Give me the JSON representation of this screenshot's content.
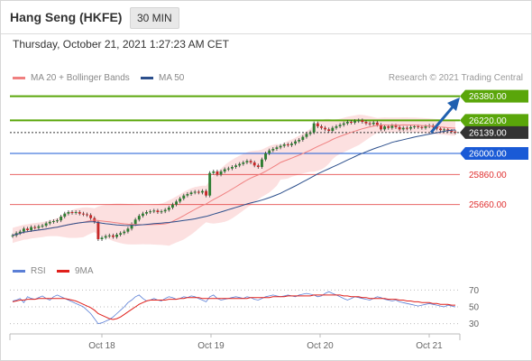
{
  "header": {
    "title": "Hang Seng (HKFE)",
    "timeframe": "30 MIN"
  },
  "timestamp": "Thursday, October 21, 2021 1:27:23 AM CET",
  "legend": {
    "items": [
      {
        "label": "MA 20 + Bollinger Bands",
        "color": "#f08080"
      },
      {
        "label": "MA 50",
        "color": "#2c4f8c"
      }
    ],
    "copyright": "Research © 2021 Trading Central"
  },
  "rsi_legend": {
    "items": [
      {
        "label": "RSI",
        "color": "#5b7fd6"
      },
      {
        "label": "9MA",
        "color": "#e0201b"
      }
    ]
  },
  "chart_data": {
    "type": "candlestick",
    "ylim": [
      25400,
      26420
    ],
    "x_ticks": [
      "Oct 18",
      "Oct 19",
      "Oct 20",
      "Oct 21"
    ],
    "levels": [
      {
        "value": 26380.0,
        "label": "26380.00",
        "kind": "resistance",
        "color": "#5aa60a"
      },
      {
        "value": 26220.0,
        "label": "26220.00",
        "kind": "resistance",
        "color": "#5aa60a"
      },
      {
        "value": 26139.0,
        "label": "26139.00",
        "kind": "last",
        "color": "#333333"
      },
      {
        "value": 26000.0,
        "label": "26000.00",
        "kind": "pivot",
        "color": "#1a5ad6"
      },
      {
        "value": 25860.0,
        "label": "25860.00",
        "kind": "support",
        "color": "#e03030"
      },
      {
        "value": 25660.0,
        "label": "25660.00",
        "kind": "support",
        "color": "#e03030"
      }
    ],
    "close": [
      25455,
      25470,
      25480,
      25500,
      25490,
      25510,
      25505,
      25515,
      25520,
      25535,
      25545,
      25550,
      25555,
      25580,
      25600,
      25610,
      25605,
      25610,
      25600,
      25595,
      25590,
      25570,
      25545,
      25430,
      25440,
      25450,
      25455,
      25445,
      25460,
      25470,
      25480,
      25500,
      25530,
      25560,
      25585,
      25600,
      25610,
      25615,
      25620,
      25610,
      25615,
      25625,
      25640,
      25660,
      25680,
      25700,
      25720,
      25730,
      25740,
      25745,
      25740,
      25750,
      25720,
      25870,
      25880,
      25860,
      25880,
      25895,
      25900,
      25910,
      25920,
      25930,
      25940,
      25950,
      25940,
      25920,
      25910,
      25960,
      26000,
      26020,
      26030,
      26040,
      26050,
      26060,
      26055,
      26065,
      26080,
      26090,
      26110,
      26130,
      26140,
      26200,
      26180,
      26170,
      26160,
      26150,
      26170,
      26180,
      26190,
      26200,
      26210,
      26205,
      26215,
      26220,
      26210,
      26200,
      26195,
      26205,
      26190,
      26160,
      26180,
      26170,
      26185,
      26175,
      26160,
      26170,
      26165,
      26175,
      26180,
      26175,
      26170,
      26180,
      26185,
      26175,
      26165,
      26155,
      26160,
      26150,
      26145,
      26139
    ],
    "rsi": {
      "scale": [
        30,
        50,
        70
      ],
      "ylim": [
        20,
        80
      ],
      "rsi_values": [
        57,
        58,
        60,
        55,
        62,
        60,
        59,
        61,
        63,
        60,
        58,
        62,
        64,
        62,
        60,
        58,
        56,
        54,
        52,
        50,
        46,
        42,
        36,
        30,
        31,
        33,
        35,
        38,
        42,
        46,
        50,
        55,
        58,
        62,
        64,
        60,
        57,
        58,
        60,
        58,
        57,
        60,
        62,
        61,
        59,
        60,
        62,
        61,
        63,
        62,
        60,
        58,
        56,
        62,
        64,
        60,
        58,
        59,
        60,
        61,
        62,
        61,
        60,
        62,
        61,
        59,
        58,
        60,
        62,
        63,
        64,
        63,
        62,
        63,
        64,
        63,
        62,
        64,
        65,
        66,
        65,
        64,
        62,
        63,
        66,
        68,
        66,
        64,
        62,
        60,
        58,
        60,
        62,
        61,
        60,
        59,
        58,
        60,
        62,
        61,
        59,
        58,
        57,
        58,
        56,
        55,
        54,
        53,
        52,
        51,
        52,
        53,
        54,
        53,
        52,
        51,
        50,
        52,
        51,
        50
      ],
      "ma_values": [
        56,
        57,
        58,
        58,
        59,
        59,
        59,
        60,
        60,
        60,
        60,
        60,
        60,
        60,
        60,
        59,
        58,
        57,
        55,
        53,
        51,
        49,
        46,
        42,
        40,
        38,
        36,
        35,
        36,
        38,
        41,
        44,
        47,
        50,
        53,
        55,
        57,
        58,
        58,
        58,
        58,
        58,
        59,
        59,
        59,
        60,
        60,
        61,
        61,
        61,
        61,
        60,
        60,
        60,
        60,
        60,
        60,
        60,
        60,
        60,
        60,
        60,
        60,
        60,
        61,
        61,
        61,
        61,
        61,
        61,
        62,
        62,
        62,
        62,
        63,
        63,
        63,
        63,
        63,
        63,
        63,
        64,
        64,
        64,
        64,
        64,
        64,
        64,
        64,
        63,
        63,
        62,
        62,
        62,
        61,
        61,
        60,
        60,
        60,
        60,
        60,
        59,
        59,
        59,
        58,
        58,
        57,
        57,
        56,
        56,
        55,
        55,
        55,
        54,
        54,
        53,
        53,
        53,
        52,
        52
      ]
    }
  }
}
